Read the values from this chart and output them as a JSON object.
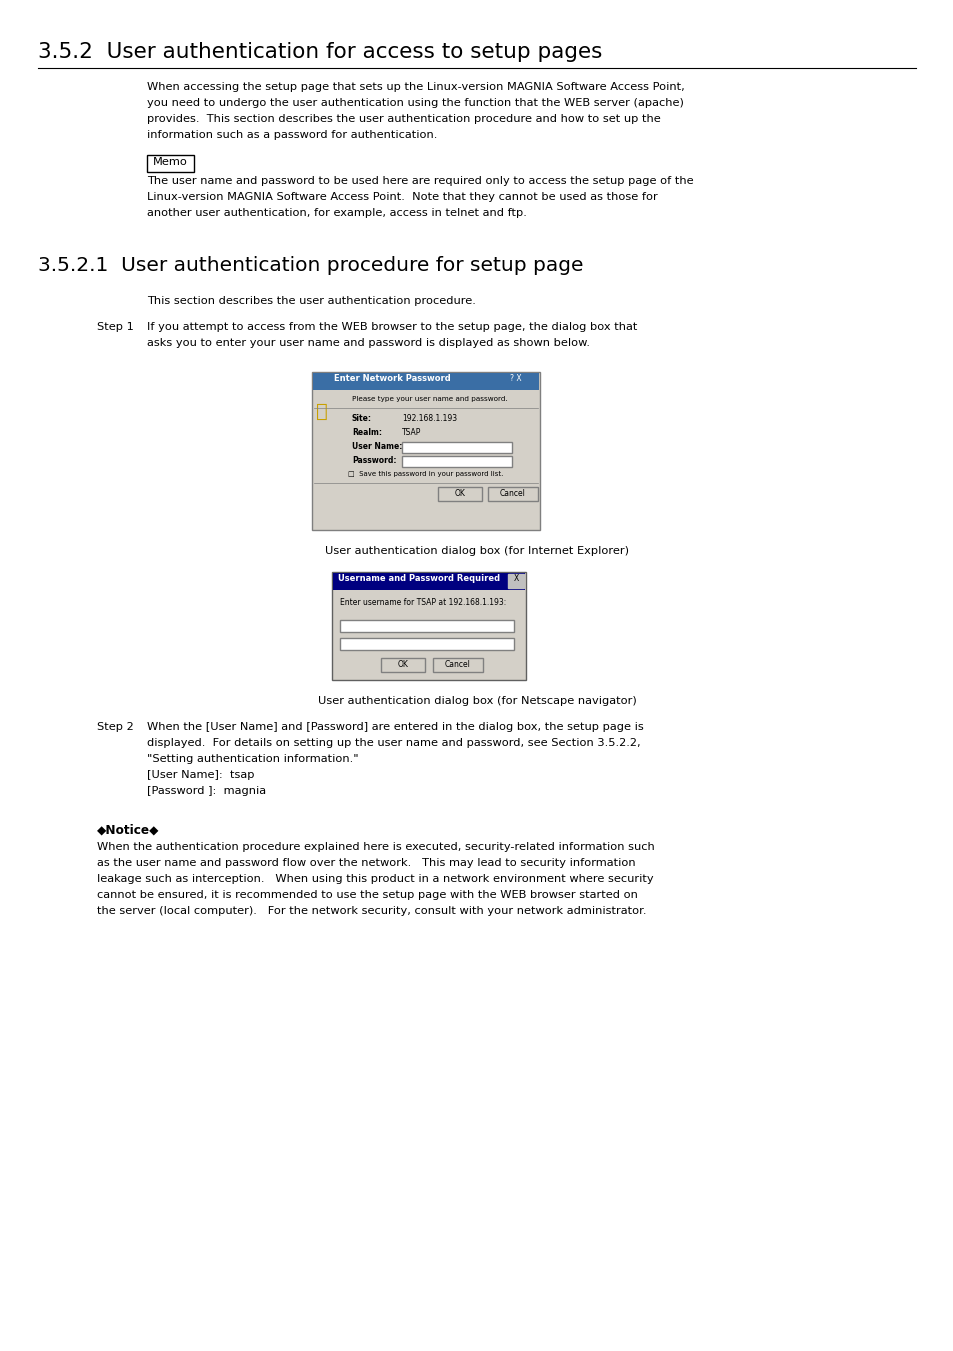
{
  "bg_color": "#ffffff",
  "section_heading": "3.5.2  User authentication for access to setup pages",
  "section_heading_font_size": 15.5,
  "subsection_heading": "3.5.2.1  User authentication procedure for setup page",
  "subsection_heading_font_size": 14.5,
  "body_font_size": 8.2,
  "step_font_size": 8.2,
  "caption_font_size": 8.2,
  "para1_lines": [
    "When accessing the setup page that sets up the Linux-version MAGNIA Software Access Point,",
    "you need to undergo the user authentication using the function that the WEB server (apache)",
    "provides.  This section describes the user authentication procedure and how to set up the",
    "information such as a password for authentication."
  ],
  "memo_label": "Memo",
  "memo_lines": [
    "The user name and password to be used here are required only to access the setup page of the",
    "Linux-version MAGNIA Software Access Point.  Note that they cannot be used as those for",
    "another user authentication, for example, access in telnet and ftp."
  ],
  "sub_intro": "This section describes the user authentication procedure.",
  "step1_label": "Step 1",
  "step1_lines": [
    "If you attempt to access from the WEB browser to the setup page, the dialog box that",
    "asks you to enter your user name and password is displayed as shown below."
  ],
  "ie_caption": "User authentication dialog box (for Internet Explorer)",
  "ns_caption": "User authentication dialog box (for Netscape navigator)",
  "step2_label": "Step 2",
  "step2_lines": [
    "When the [User Name] and [Password] are entered in the dialog box, the setup page is",
    "displayed.  For details on setting up the user name and password, see Section 3.5.2.2,",
    "\"Setting authentication information.\"",
    "[User Name]:  tsap",
    "[Password ]:  magnia"
  ],
  "notice_label": "◆Notice◆",
  "notice_lines": [
    "When the authentication procedure explained here is executed, security-related information such",
    "as the user name and password flow over the network.   This may lead to security information",
    "leakage such as interception.   When using this product in a network environment where security",
    "cannot be ensured, it is recommended to use the setup page with the WEB browser started on",
    "the server (local computer).   For the network security, consult with your network administrator."
  ]
}
